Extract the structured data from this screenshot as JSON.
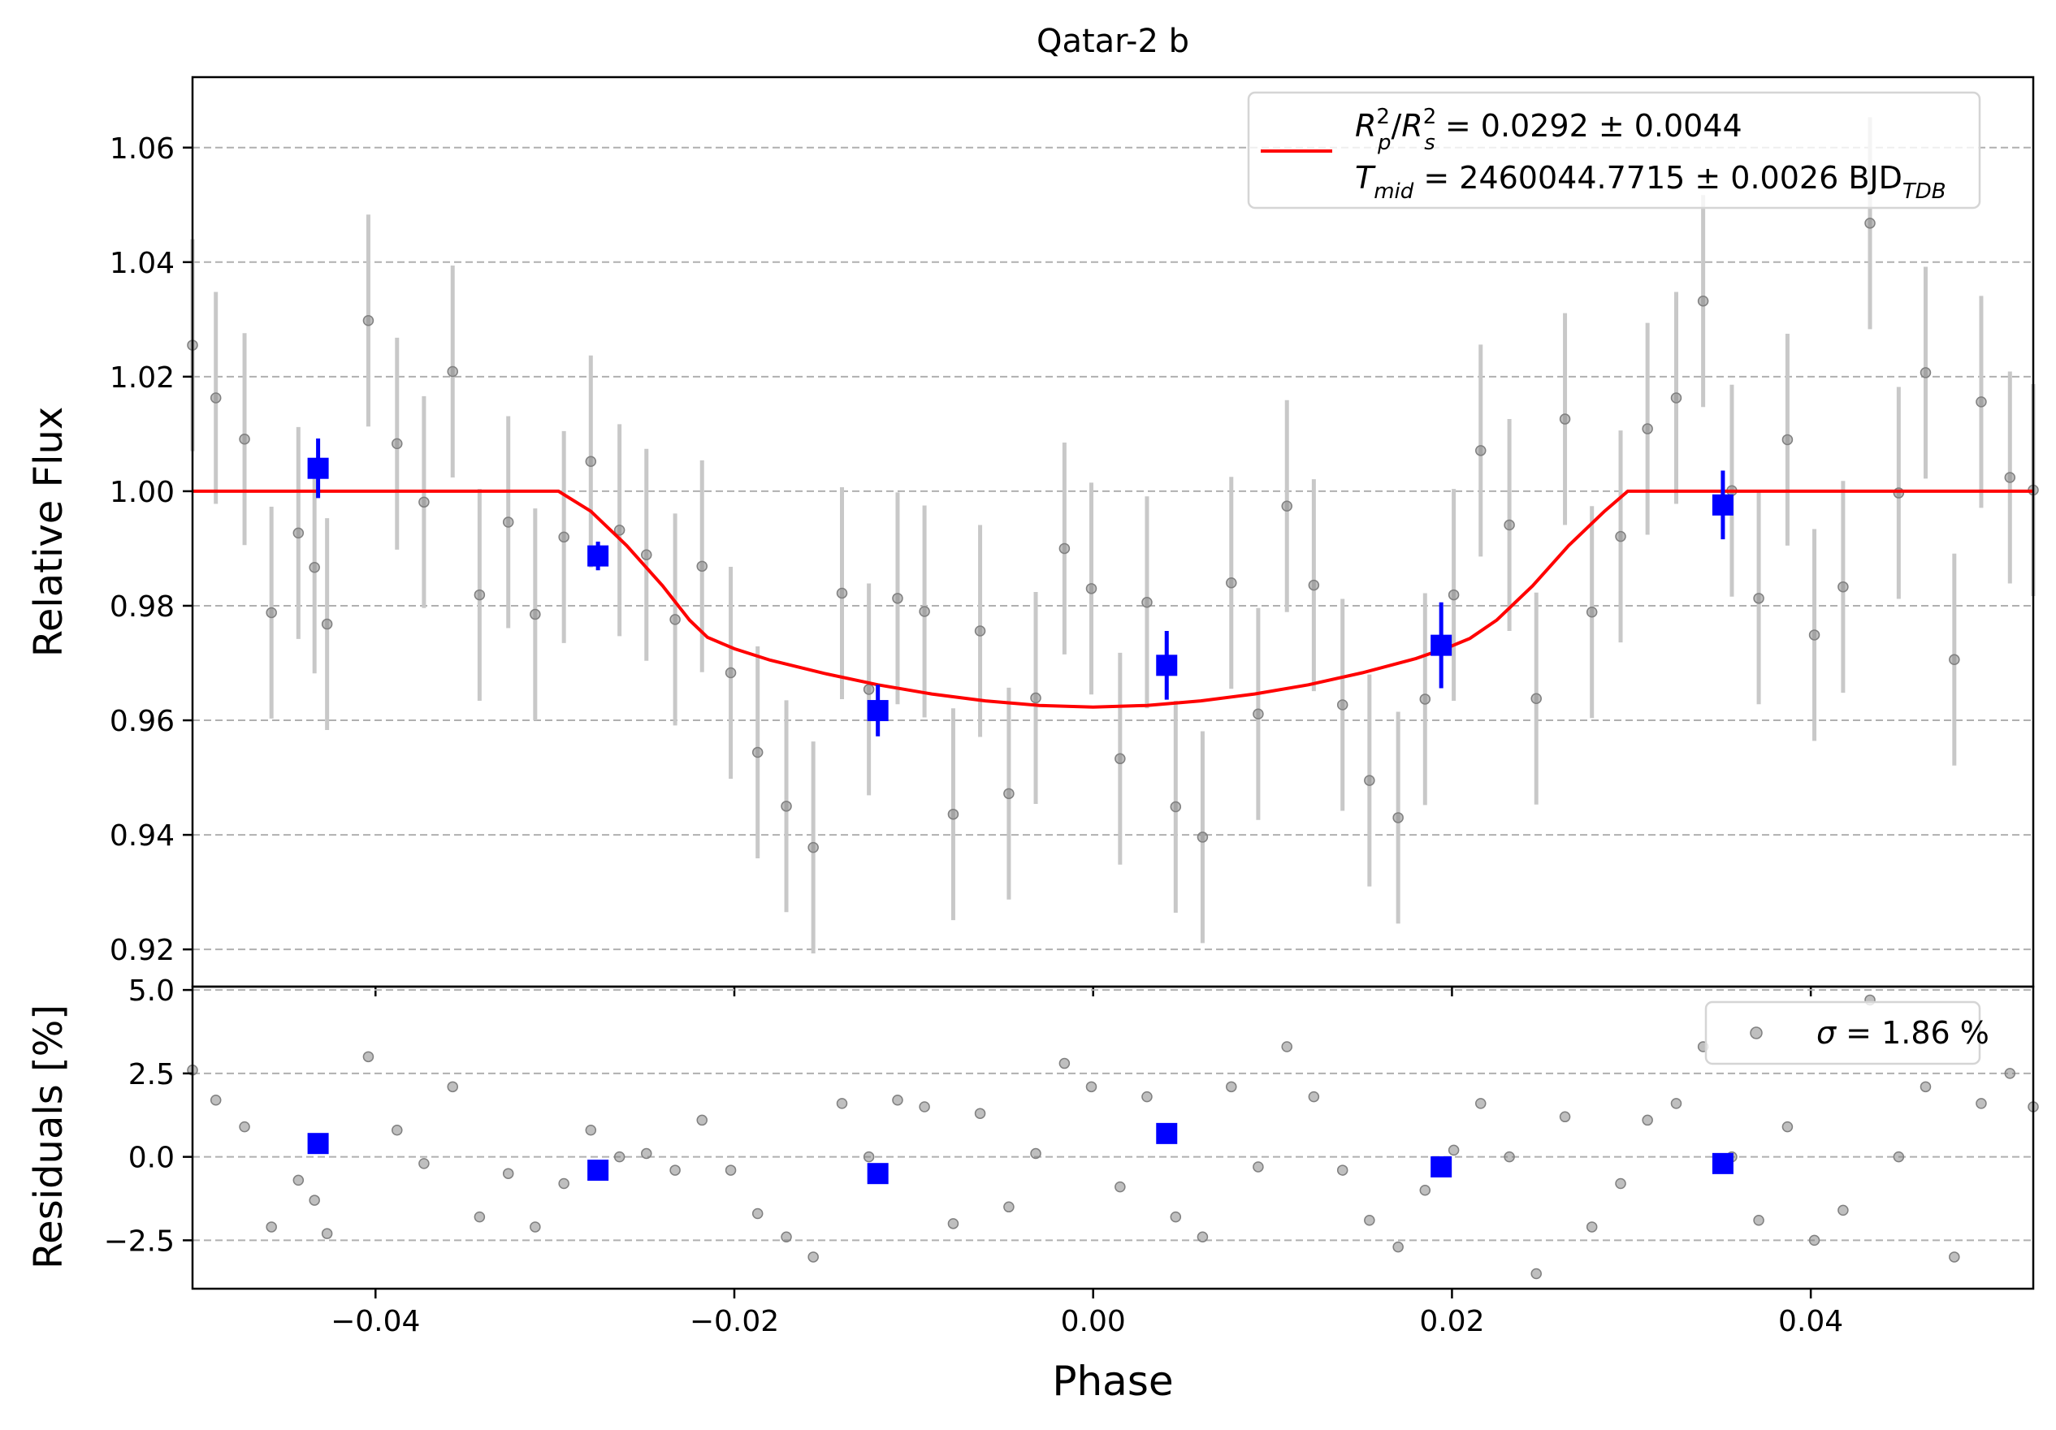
{
  "chart_data": [
    {
      "type": "scatter",
      "title": "Qatar-2 b",
      "xlabel": "",
      "ylabel": "Relative Flux",
      "xlim": [
        -0.0502,
        0.0524
      ],
      "ylim": [
        0.9135,
        1.0723
      ],
      "grid": "horizontal dashed",
      "x_ticks": [
        "−0.04",
        "−0.02",
        "0.00",
        "0.02",
        "0.04"
      ],
      "x_tick_values": [
        -0.04,
        -0.02,
        0.0,
        0.02,
        0.04
      ],
      "y_ticks": [
        "0.92",
        "0.94",
        "0.96",
        "0.98",
        "1.00",
        "1.02",
        "1.04",
        "1.06"
      ],
      "y_tick_values": [
        0.92,
        0.94,
        0.96,
        0.98,
        1.0,
        1.02,
        1.04,
        1.06
      ],
      "legend": {
        "placement": "top-right",
        "line1": {
          "sym": "R",
          "sup1": "2",
          "sub1": "p",
          "slash": "/",
          "sym2": "R",
          "sup2": "2",
          "sub2": "s",
          "rest": " = 0.0292 ± 0.0044"
        },
        "line2": {
          "sym": "T",
          "sub": "mid",
          "rest": " = 2460044.7715 ± 0.0026 BJD",
          "sub2": "TDB"
        }
      },
      "colors": {
        "raw": "#808080",
        "errorbar": "#c8c8c8",
        "binned": "#0000ff",
        "model": "#ff0000",
        "grid": "#b0b0b0"
      },
      "model": {
        "name": "",
        "x": [
          -0.0502,
          -0.0298,
          -0.028,
          -0.026,
          -0.024,
          -0.0225,
          -0.0215,
          -0.02,
          -0.018,
          -0.015,
          -0.012,
          -0.009,
          -0.006,
          -0.003,
          0.0,
          0.003,
          0.006,
          0.009,
          0.012,
          0.015,
          0.018,
          0.02,
          0.021,
          0.0225,
          0.0245,
          0.0265,
          0.0285,
          0.0298,
          0.0524
        ],
        "y": [
          1.0,
          1.0,
          0.9965,
          0.9905,
          0.9835,
          0.9775,
          0.9745,
          0.9725,
          0.9705,
          0.9682,
          0.9662,
          0.9646,
          0.9634,
          0.9626,
          0.9623,
          0.9626,
          0.9634,
          0.9646,
          0.9662,
          0.9683,
          0.9708,
          0.973,
          0.9743,
          0.9775,
          0.9835,
          0.9905,
          0.9965,
          1.0,
          1.0
        ]
      },
      "series": [
        {
          "name": "",
          "x": [
            -0.0502,
            -0.0489,
            -0.0473,
            -0.0458,
            -0.0443,
            -0.0434,
            -0.0427,
            -0.0404,
            -0.0388,
            -0.0373,
            -0.0357,
            -0.0342,
            -0.0326,
            -0.0311,
            -0.0295,
            -0.028,
            -0.0264,
            -0.0249,
            -0.0233,
            -0.0218,
            -0.0202,
            -0.0187,
            -0.0171,
            -0.0156,
            -0.014,
            -0.0125,
            -0.0109,
            -0.0094,
            -0.0078,
            -0.0063,
            -0.0047,
            -0.0032,
            -0.0016,
            -0.0001,
            0.0015,
            0.003,
            0.0046,
            0.0061,
            0.0077,
            0.0092,
            0.0108,
            0.0123,
            0.0139,
            0.0154,
            0.017,
            0.0185,
            0.0201,
            0.0216,
            0.0232,
            0.0247,
            0.0263,
            0.0278,
            0.0294,
            0.0309,
            0.0325,
            0.034,
            0.0356,
            0.0371,
            0.0387,
            0.0402,
            0.0418,
            0.0433,
            0.0449,
            0.0464,
            0.048,
            0.0495,
            0.0511,
            0.0524
          ],
          "y": [
            1.0255,
            1.0163,
            1.0091,
            0.9788,
            0.9927,
            0.9867,
            0.9768,
            1.0298,
            1.0083,
            0.9981,
            1.0209,
            0.9819,
            0.9946,
            0.9785,
            0.992,
            1.0052,
            0.9932,
            0.9889,
            0.9776,
            0.9869,
            0.9683,
            0.9544,
            0.945,
            0.9378,
            0.9822,
            0.9654,
            0.9813,
            0.979,
            0.9436,
            0.9756,
            0.9472,
            0.9639,
            0.99,
            0.983,
            0.9533,
            0.9806,
            0.9449,
            0.9396,
            0.984,
            0.9611,
            0.9974,
            0.9836,
            0.9627,
            0.9495,
            0.943,
            0.9637,
            0.9819,
            1.0071,
            0.9941,
            0.9638,
            1.0126,
            0.9789,
            0.9921,
            1.0109,
            1.0163,
            1.0332,
            1.0001,
            0.9813,
            1.009,
            0.9749,
            0.9833,
            1.0468,
            0.9997,
            1.0207,
            0.9706,
            1.0156,
            1.0024,
            1.0002
          ],
          "yerr": 0.0185
        },
        {
          "name": "",
          "x": [
            -0.0432,
            -0.0276,
            -0.012,
            0.0041,
            0.0194,
            0.0351
          ],
          "y": [
            1.004,
            0.9887,
            0.9617,
            0.9696,
            0.9731,
            0.9976
          ],
          "yerr": [
            0.0052,
            0.0025,
            0.0045,
            0.006,
            0.0075,
            0.006
          ]
        }
      ]
    },
    {
      "type": "scatter",
      "title": "",
      "xlabel": "Phase",
      "ylabel": "Residuals [%]",
      "xlim": [
        -0.0502,
        0.0524
      ],
      "ylim": [
        -3.95,
        5.1
      ],
      "grid": "horizontal dashed",
      "x_ticks": [
        "−0.04",
        "−0.02",
        "0.00",
        "0.02",
        "0.04"
      ],
      "x_tick_values": [
        -0.04,
        -0.02,
        0.0,
        0.02,
        0.04
      ],
      "y_ticks": [
        "5.0",
        "2.5",
        "0.0",
        "−2.5"
      ],
      "y_tick_values": [
        5.0,
        2.5,
        0.0,
        -2.5
      ],
      "legend": {
        "placement": "top-right",
        "sym": "σ",
        "rest": " = 1.86 %"
      },
      "series": [
        {
          "name": "",
          "x": [
            -0.0502,
            -0.0489,
            -0.0473,
            -0.0458,
            -0.0443,
            -0.0434,
            -0.0427,
            -0.0404,
            -0.0388,
            -0.0373,
            -0.0357,
            -0.0342,
            -0.0326,
            -0.0311,
            -0.0295,
            -0.028,
            -0.0264,
            -0.0249,
            -0.0233,
            -0.0218,
            -0.0202,
            -0.0187,
            -0.0171,
            -0.0156,
            -0.014,
            -0.0125,
            -0.0109,
            -0.0094,
            -0.0078,
            -0.0063,
            -0.0047,
            -0.0032,
            -0.0016,
            -0.0001,
            0.0015,
            0.003,
            0.0046,
            0.0061,
            0.0077,
            0.0092,
            0.0108,
            0.0123,
            0.0139,
            0.0154,
            0.017,
            0.0185,
            0.0201,
            0.0216,
            0.0232,
            0.0247,
            0.0263,
            0.0278,
            0.0294,
            0.0309,
            0.0325,
            0.034,
            0.0356,
            0.0371,
            0.0387,
            0.0402,
            0.0418,
            0.0433,
            0.0449,
            0.0464,
            0.048,
            0.0495,
            0.0511,
            0.0524
          ],
          "y": [
            2.6,
            1.7,
            0.9,
            -2.1,
            -0.7,
            -1.3,
            -2.3,
            3.0,
            0.8,
            -0.2,
            2.1,
            -1.8,
            -0.5,
            -2.1,
            -0.8,
            0.8,
            0.0,
            0.1,
            -0.4,
            1.1,
            -0.4,
            -1.7,
            -2.4,
            -3.0,
            1.6,
            0.0,
            1.7,
            1.5,
            -2.0,
            1.3,
            -1.5,
            0.1,
            2.8,
            2.1,
            -0.9,
            1.8,
            -1.8,
            -2.4,
            2.1,
            -0.3,
            3.3,
            1.8,
            -0.4,
            -1.9,
            -2.7,
            -1.0,
            0.2,
            1.6,
            0.0,
            -3.5,
            1.2,
            -2.1,
            -0.8,
            1.1,
            1.6,
            3.3,
            0.0,
            -1.9,
            0.9,
            -2.5,
            -1.6,
            4.7,
            0.0,
            2.1,
            -3.0,
            1.6,
            2.5,
            1.5
          ]
        },
        {
          "name": "",
          "x": [
            -0.0432,
            -0.0276,
            -0.012,
            0.0041,
            0.0194,
            0.0351
          ],
          "y": [
            0.4,
            -0.4,
            -0.5,
            0.7,
            -0.3,
            -0.2
          ]
        }
      ]
    }
  ]
}
